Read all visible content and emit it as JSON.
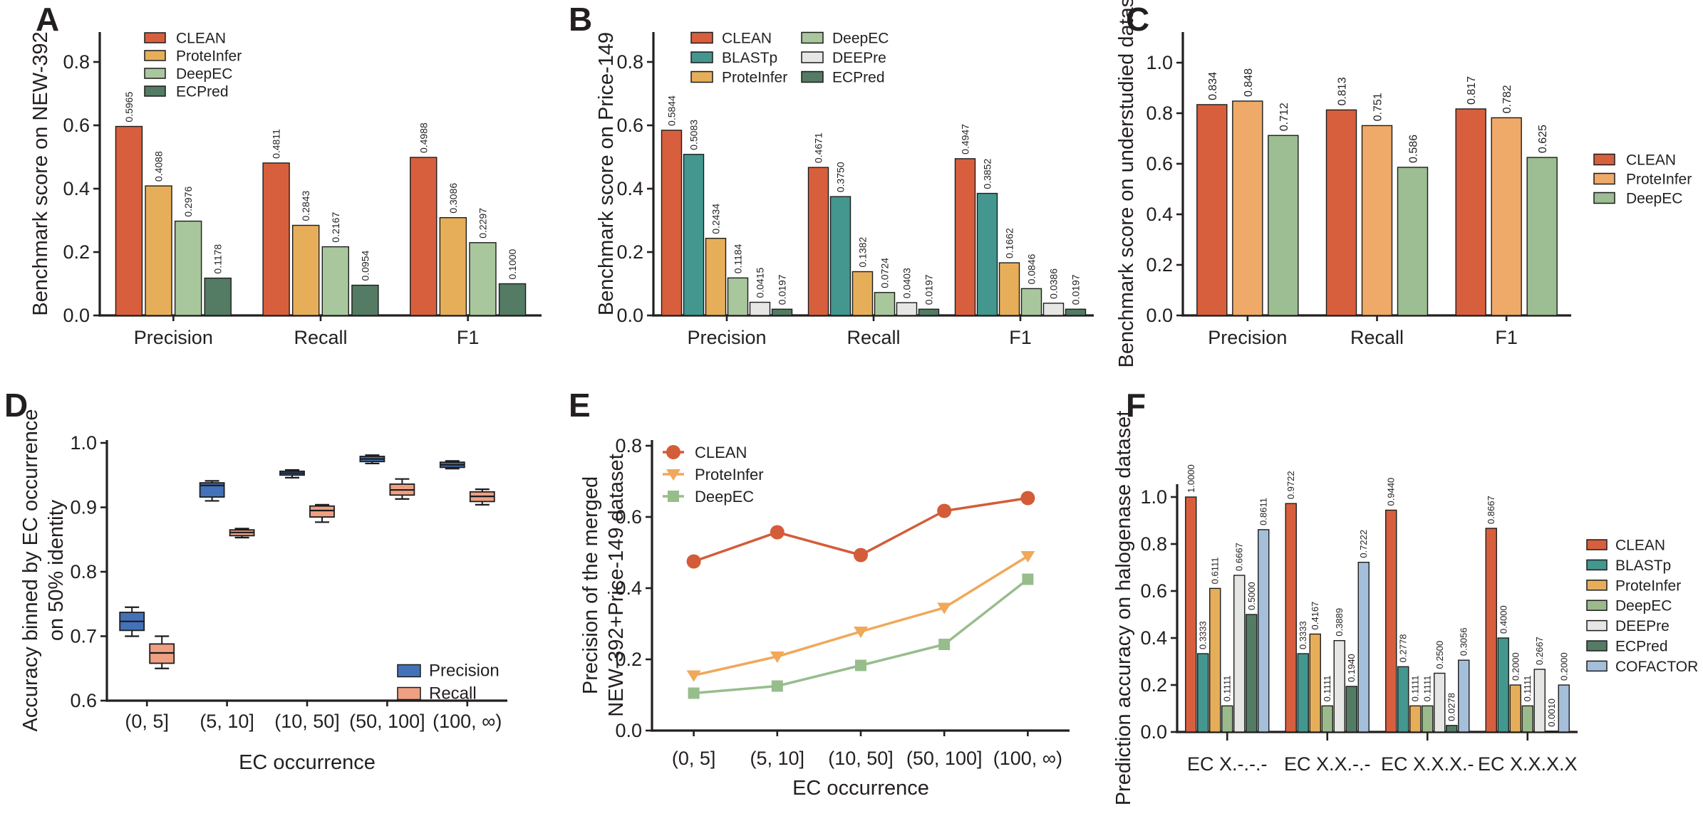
{
  "figure": {
    "background": "#FFFFFF"
  },
  "chart_data": [
    {
      "panel": "A",
      "type": "bar",
      "ylabel": "Benchmark score on NEW-392",
      "categories": [
        "Precision",
        "Recall",
        "F1"
      ],
      "yticks": [
        "0.0",
        "0.2",
        "0.4",
        "0.6",
        "0.8"
      ],
      "ylim": [
        0,
        0.894
      ],
      "grid": false,
      "legend_position": "top-left-inside",
      "series": [
        {
          "name": "CLEAN",
          "color": "#D85F3D",
          "values": [
            "0.5965",
            "0.4811",
            "0.4988"
          ]
        },
        {
          "name": "ProteInfer",
          "color": "#E7AE5A",
          "values": [
            "0.4088",
            "0.2843",
            "0.3086"
          ]
        },
        {
          "name": "DeepEC",
          "color": "#A9C79D",
          "values": [
            "0.2976",
            "0.2167",
            "0.2297"
          ]
        },
        {
          "name": "ECPred",
          "color": "#547B64",
          "values": [
            "0.1178",
            "0.0954",
            "0.1000"
          ]
        }
      ]
    },
    {
      "panel": "B",
      "type": "bar",
      "ylabel": "Benchmark score on Price-149",
      "categories": [
        "Precision",
        "Recall",
        "F1"
      ],
      "yticks": [
        "0.0",
        "0.2",
        "0.4",
        "0.6",
        "0.8"
      ],
      "ylim": [
        0,
        0.894
      ],
      "grid": false,
      "legend_position": "top-inside-two-columns",
      "series": [
        {
          "name": "CLEAN",
          "color": "#D85F3D",
          "values": [
            "0.5844",
            "0.4671",
            "0.4947"
          ]
        },
        {
          "name": "BLASTp",
          "color": "#43978F",
          "values": [
            "0.5083",
            "0.3750",
            "0.3852"
          ]
        },
        {
          "name": "ProteInfer",
          "color": "#E7AE5A",
          "values": [
            "0.2434",
            "0.1382",
            "0.1662"
          ]
        },
        {
          "name": "DeepEC",
          "color": "#A9C79D",
          "values": [
            "0.1184",
            "0.0724",
            "0.0846"
          ]
        },
        {
          "name": "DEEPre",
          "color": "#E6E6E4",
          "values": [
            "0.0415",
            "0.0403",
            "0.0386"
          ]
        },
        {
          "name": "ECPred",
          "color": "#547B64",
          "values": [
            "0.0197",
            "0.0197",
            "0.0197"
          ]
        }
      ]
    },
    {
      "panel": "C",
      "type": "bar",
      "ylabel": "Benchmark score on understudied dataset",
      "categories": [
        "Precision",
        "Recall",
        "F1"
      ],
      "yticks": [
        "0.0",
        "0.2",
        "0.4",
        "0.6",
        "0.8",
        "1.0"
      ],
      "ylim": [
        0,
        1.12
      ],
      "grid": false,
      "legend_position": "right-outside",
      "series": [
        {
          "name": "CLEAN",
          "color": "#D85F3D",
          "values": [
            "0.834",
            "0.813",
            "0.817"
          ]
        },
        {
          "name": "ProteInfer",
          "color": "#EFA968",
          "values": [
            "0.848",
            "0.751",
            "0.782"
          ]
        },
        {
          "name": "DeepEC",
          "color": "#9DBD92",
          "values": [
            "0.712",
            "0.586",
            "0.625"
          ]
        }
      ]
    },
    {
      "panel": "D",
      "type": "box",
      "ylabel_lines": [
        "Accuracy binned by EC occurrence",
        "on 50% identity"
      ],
      "xlabel": "EC occurrence",
      "categories": [
        "(0, 5]",
        "(5, 10]",
        "(10, 50]",
        "(50, 100]",
        "(100, ∞)"
      ],
      "yticks": [
        "0.6",
        "0.7",
        "0.8",
        "0.9",
        "1.0"
      ],
      "ylim": [
        0.6,
        1.004
      ],
      "grid": false,
      "legend_position": "bottom-right-inside",
      "box_values_order": [
        "whisker_low",
        "q1",
        "median",
        "q3",
        "whisker_high"
      ],
      "series": [
        {
          "name": "Precision",
          "color": "#4472B9",
          "boxes": [
            [
              0.7,
              0.709,
              0.723,
              0.737,
              0.745
            ],
            [
              0.91,
              0.916,
              0.934,
              0.938,
              0.941
            ],
            [
              0.946,
              0.95,
              0.953,
              0.956,
              0.958
            ],
            [
              0.968,
              0.971,
              0.975,
              0.979,
              0.981
            ],
            [
              0.96,
              0.962,
              0.966,
              0.97,
              0.972
            ]
          ]
        },
        {
          "name": "Recall",
          "color": "#EFA083",
          "boxes": [
            [
              0.65,
              0.658,
              0.674,
              0.688,
              0.7
            ],
            [
              0.853,
              0.856,
              0.861,
              0.865,
              0.867
            ],
            [
              0.877,
              0.885,
              0.895,
              0.902,
              0.904
            ],
            [
              0.913,
              0.919,
              0.927,
              0.936,
              0.944
            ],
            [
              0.904,
              0.909,
              0.917,
              0.924,
              0.928
            ]
          ]
        }
      ]
    },
    {
      "panel": "E",
      "type": "line",
      "ylabel_lines": [
        "Precision of the merged",
        "NEW-392+Price-149 dataset"
      ],
      "xlabel": "EC occurrence",
      "categories": [
        "(0, 5]",
        "(5, 10]",
        "(10, 50]",
        "(50, 100]",
        "(100, ∞)"
      ],
      "yticks": [
        "0.0",
        "0.2",
        "0.4",
        "0.6",
        "0.8"
      ],
      "ylim": [
        0,
        0.816
      ],
      "grid": false,
      "legend_position": "top-left-inside",
      "series": [
        {
          "name": "CLEAN",
          "color": "#D35C39",
          "marker": "circle",
          "values": [
            0.475,
            0.557,
            0.493,
            0.617,
            0.653
          ]
        },
        {
          "name": "ProteInfer",
          "color": "#F0A85A",
          "marker": "triangle-down",
          "values": [
            0.155,
            0.208,
            0.278,
            0.345,
            0.49
          ]
        },
        {
          "name": "DeepEC",
          "color": "#97BD8C",
          "marker": "square",
          "values": [
            0.105,
            0.125,
            0.183,
            0.242,
            0.425
          ]
        }
      ]
    },
    {
      "panel": "F",
      "type": "bar",
      "ylabel": "Prediction accuracy on halogenase dataset",
      "categories": [
        "EC X.-.-.-",
        "EC X.X.-.-",
        "EC X.X.X.-",
        "EC X.X.X.X"
      ],
      "yticks": [
        "0.0",
        "0.2",
        "0.4",
        "0.6",
        "0.8",
        "1.0"
      ],
      "ylim": [
        0,
        1.055
      ],
      "grid": false,
      "legend_position": "right-outside",
      "series": [
        {
          "name": "CLEAN",
          "color": "#D85F3D",
          "values": [
            "1.0000",
            "0.9722",
            "0.9440",
            "0.8667"
          ]
        },
        {
          "name": "BLASTp",
          "color": "#43978F",
          "values": [
            "0.3333",
            "0.3333",
            "0.2778",
            "0.4000"
          ]
        },
        {
          "name": "ProteInfer",
          "color": "#E7AE5A",
          "values": [
            "0.6111",
            "0.4167",
            "0.1111",
            "0.2000"
          ]
        },
        {
          "name": "DeepEC",
          "color": "#9BBA8B",
          "values": [
            "0.1111",
            "0.1111",
            "0.1111",
            "0.1111"
          ]
        },
        {
          "name": "DEEPre",
          "color": "#E6E6E4",
          "values": [
            "0.6667",
            "0.3889",
            "0.2500",
            "0.2667"
          ]
        },
        {
          "name": "ECPred",
          "color": "#547B64",
          "values": [
            "0.5000",
            "0.1940",
            "0.0278",
            "0.0010"
          ]
        },
        {
          "name": "COFACTOR",
          "color": "#A5BFDB",
          "values": [
            "0.8611",
            "0.7222",
            "0.3056",
            "0.2000"
          ]
        }
      ]
    }
  ]
}
